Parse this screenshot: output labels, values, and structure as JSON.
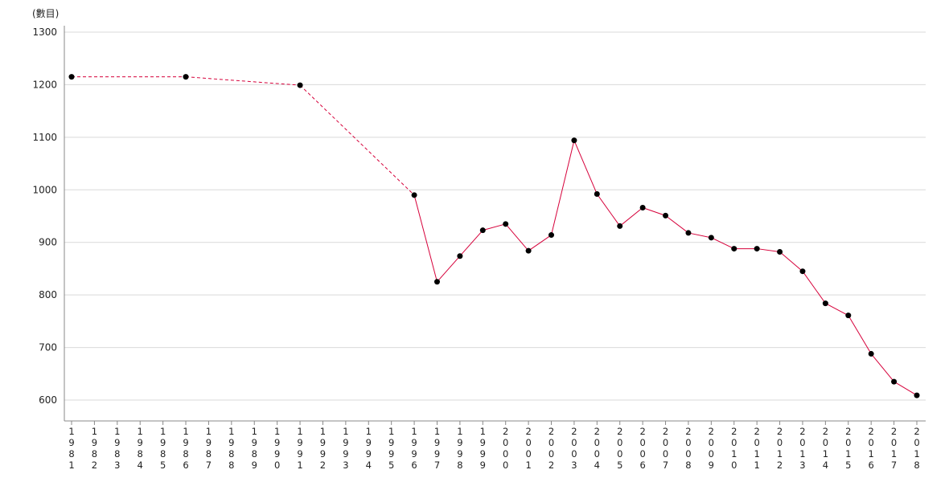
{
  "chart_data": {
    "type": "line",
    "title": "",
    "xlabel": "",
    "ylabel": "(數目)",
    "ylim": [
      580,
      1310
    ],
    "yticks": [
      600,
      700,
      800,
      900,
      1000,
      1100,
      1200,
      1300
    ],
    "grid": "horizontal",
    "line_color": "#d6003a",
    "marker_color": "#000000",
    "x": [
      "1981",
      "1982",
      "1983",
      "1984",
      "1985",
      "1986",
      "1987",
      "1988",
      "1989",
      "1990",
      "1991",
      "1992",
      "1993",
      "1994",
      "1995",
      "1996",
      "1997",
      "1998",
      "1999",
      "2000",
      "2001",
      "2002",
      "2003",
      "2004",
      "2005",
      "2006",
      "2007",
      "2008",
      "2009",
      "2010",
      "2011",
      "2012",
      "2013",
      "2014",
      "2015",
      "2016",
      "2017",
      "2018"
    ],
    "series": [
      {
        "points": [
          {
            "x": "1981",
            "y": 1215
          },
          {
            "x": "1986",
            "y": 1215
          },
          {
            "x": "1991",
            "y": 1199
          },
          {
            "x": "1996",
            "y": 990
          },
          {
            "x": "1997",
            "y": 825
          },
          {
            "x": "1998",
            "y": 874
          },
          {
            "x": "1999",
            "y": 923
          },
          {
            "x": "2000",
            "y": 935
          },
          {
            "x": "2001",
            "y": 884
          },
          {
            "x": "2002",
            "y": 914
          },
          {
            "x": "2003",
            "y": 1094
          },
          {
            "x": "2004",
            "y": 992
          },
          {
            "x": "2005",
            "y": 931
          },
          {
            "x": "2006",
            "y": 966
          },
          {
            "x": "2007",
            "y": 951
          },
          {
            "x": "2008",
            "y": 918
          },
          {
            "x": "2009",
            "y": 909
          },
          {
            "x": "2010",
            "y": 888
          },
          {
            "x": "2011",
            "y": 888
          },
          {
            "x": "2012",
            "y": 882
          },
          {
            "x": "2013",
            "y": 845
          },
          {
            "x": "2014",
            "y": 784
          },
          {
            "x": "2015",
            "y": 761
          },
          {
            "x": "2016",
            "y": 688
          },
          {
            "x": "2017",
            "y": 635
          },
          {
            "x": "2018",
            "y": 609
          }
        ],
        "dashed_until": "1996"
      }
    ]
  }
}
